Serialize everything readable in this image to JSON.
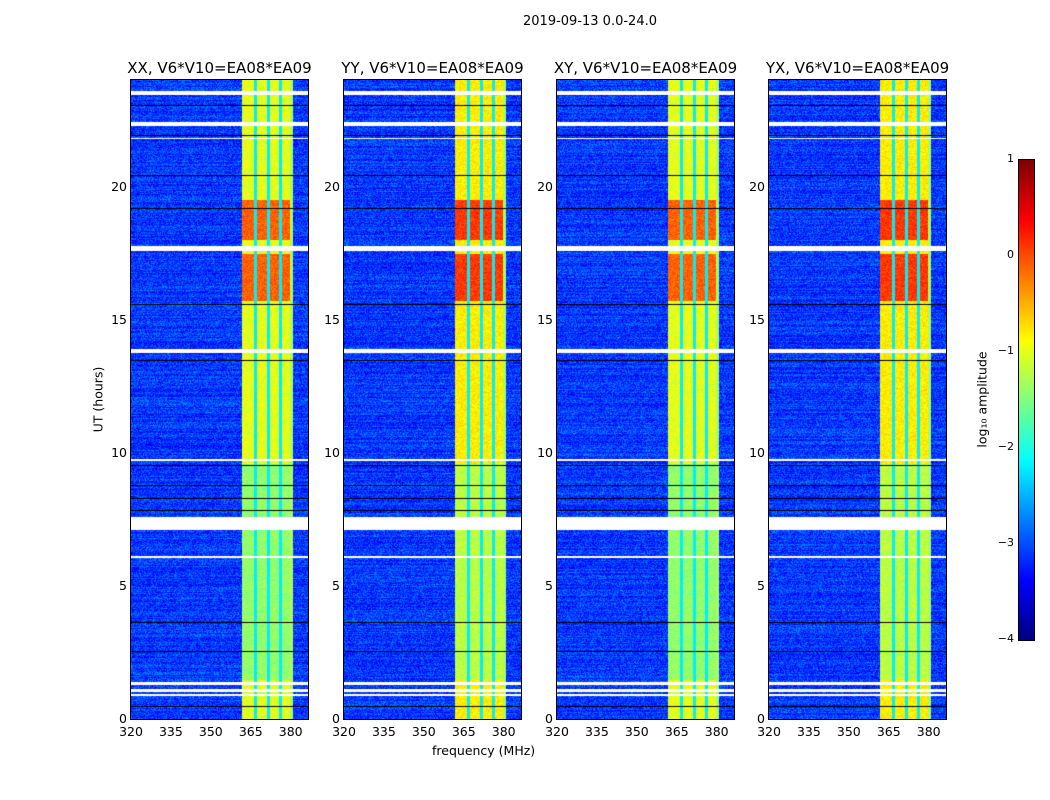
{
  "chart_data": {
    "type": "heatmap",
    "title": "2019-09-13 0.0-24.0",
    "xlabel": "frequency (MHz)",
    "ylabel": "UT (hours)",
    "xlim": [
      320,
      386.5
    ],
    "ylim": [
      0,
      24
    ],
    "xticks": [
      320,
      335,
      350,
      365,
      380
    ],
    "yticks": [
      0,
      5,
      10,
      15,
      20
    ],
    "panels": [
      {
        "title": "XX, V6*V10=EA08*EA09"
      },
      {
        "title": "YY, V6*V10=EA08*EA09"
      },
      {
        "title": "XY, V6*V10=EA08*EA09"
      },
      {
        "title": "YX, V6*V10=EA08*EA09"
      }
    ],
    "rfi_band_mhz": [
      361.5,
      380.5
    ],
    "rfi_band_gaps_mhz": [
      366.5,
      371.5,
      376
    ],
    "flagged_hours": [
      [
        23.45,
        23.6
      ],
      [
        22.3,
        22.45
      ],
      [
        21.8,
        21.85
      ],
      [
        17.6,
        17.8
      ],
      [
        13.75,
        13.9
      ],
      [
        9.7,
        9.8
      ],
      [
        7.1,
        7.6
      ],
      [
        6.05,
        6.15
      ],
      [
        1.3,
        1.4
      ],
      [
        1.05,
        1.15
      ],
      [
        0.9,
        0.95
      ]
    ],
    "colorbar": {
      "label": "log₁₀ amplitude",
      "range": [
        -4,
        1
      ],
      "ticks": [
        "1",
        "0",
        "−1",
        "−2",
        "−3",
        "−4"
      ],
      "colormap": "jet"
    }
  }
}
